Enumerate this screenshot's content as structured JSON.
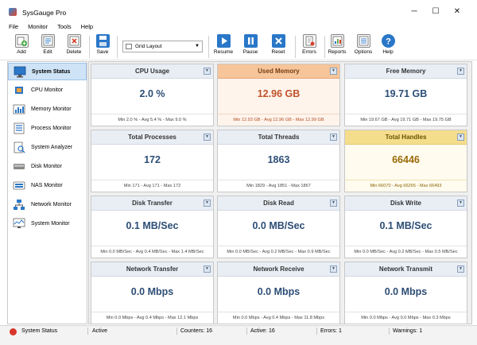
{
  "window": {
    "title": "SysGauge Pro",
    "controls": [
      "─",
      "☐",
      "✕"
    ]
  },
  "menu": [
    "File",
    "Monitor",
    "Tools",
    "Help"
  ],
  "toolbar": {
    "add": "Add",
    "edit": "Edit",
    "delete": "Delete",
    "save": "Save",
    "layout": "Grid Layout",
    "resume": "Resume",
    "pause": "Pause",
    "reset": "Reset",
    "errors": "Errors",
    "reports": "Reports",
    "options": "Options",
    "help": "Help"
  },
  "sidebar": {
    "items": [
      {
        "label": "System Status",
        "icon": "monitor-icon",
        "active": true
      },
      {
        "label": "CPU Monitor",
        "icon": "cpu-icon"
      },
      {
        "label": "Memory Monitor",
        "icon": "memory-icon"
      },
      {
        "label": "Process Monitor",
        "icon": "process-icon"
      },
      {
        "label": "System Analyzer",
        "icon": "analyzer-icon"
      },
      {
        "label": "Disk Monitor",
        "icon": "disk-icon"
      },
      {
        "label": "NAS Monitor",
        "icon": "nas-icon"
      },
      {
        "label": "Network Monitor",
        "icon": "network-icon"
      },
      {
        "label": "System Monitor",
        "icon": "system-icon"
      }
    ]
  },
  "cards": [
    {
      "title": "CPU Usage",
      "value": "2.0 %",
      "stats": "Min 2.0 % - Avg 5.4 % - Max 9.0 %",
      "state": "normal"
    },
    {
      "title": "Used Memory",
      "value": "12.96 GB",
      "stats": "Min 12.93 GB - Avg 12.96 GB - Max 12.99 GB",
      "state": "warn"
    },
    {
      "title": "Free Memory",
      "value": "19.71 GB",
      "stats": "Min 19.67 GB - Avg 19.71 GB - Max 19.75 GB",
      "state": "normal"
    },
    {
      "title": "Total Processes",
      "value": "172",
      "stats": "Min 171 - Avg 171 - Max 172",
      "state": "normal"
    },
    {
      "title": "Total Threads",
      "value": "1863",
      "stats": "Min 1829 - Avg 1851 - Max 1867",
      "state": "normal"
    },
    {
      "title": "Total Handles",
      "value": "66446",
      "stats": "Min 66070 - Avg 66265 - Max 66493",
      "state": "caution"
    },
    {
      "title": "Disk Transfer",
      "value": "0.1 MB/Sec",
      "stats": "Min 0.0 MB/Sec - Avg 0.4 MB/Sec - Max 1.4 MB/Sec",
      "state": "normal"
    },
    {
      "title": "Disk Read",
      "value": "0.0 MB/Sec",
      "stats": "Min 0.0 MB/Sec - Avg 0.2 MB/Sec - Max 0.9 MB/Sec",
      "state": "normal"
    },
    {
      "title": "Disk Write",
      "value": "0.1 MB/Sec",
      "stats": "Min 0.0 MB/Sec - Avg 0.2 MB/Sec - Max 0.5 MB/Sec",
      "state": "normal"
    },
    {
      "title": "Network Transfer",
      "value": "0.0 Mbps",
      "stats": "Min 0.0 Mbps - Avg 0.4 Mbps - Max 12.1 Mbps",
      "state": "normal"
    },
    {
      "title": "Network Receive",
      "value": "0.0 Mbps",
      "stats": "Min 0.0 Mbps - Avg 0.4 Mbps - Max 11.8 Mbps",
      "state": "normal"
    },
    {
      "title": "Network Transmit",
      "value": "0.0 Mbps",
      "stats": "Min 0.0 Mbps - Avg 0.0 Mbps - Max 0.3 Mbps",
      "state": "normal"
    }
  ],
  "status": {
    "name": "System Status",
    "state": "Active",
    "counters": "Counters: 16",
    "active": "Active: 16",
    "errors": "Errors: 1",
    "warnings": "Warnings: 1"
  }
}
